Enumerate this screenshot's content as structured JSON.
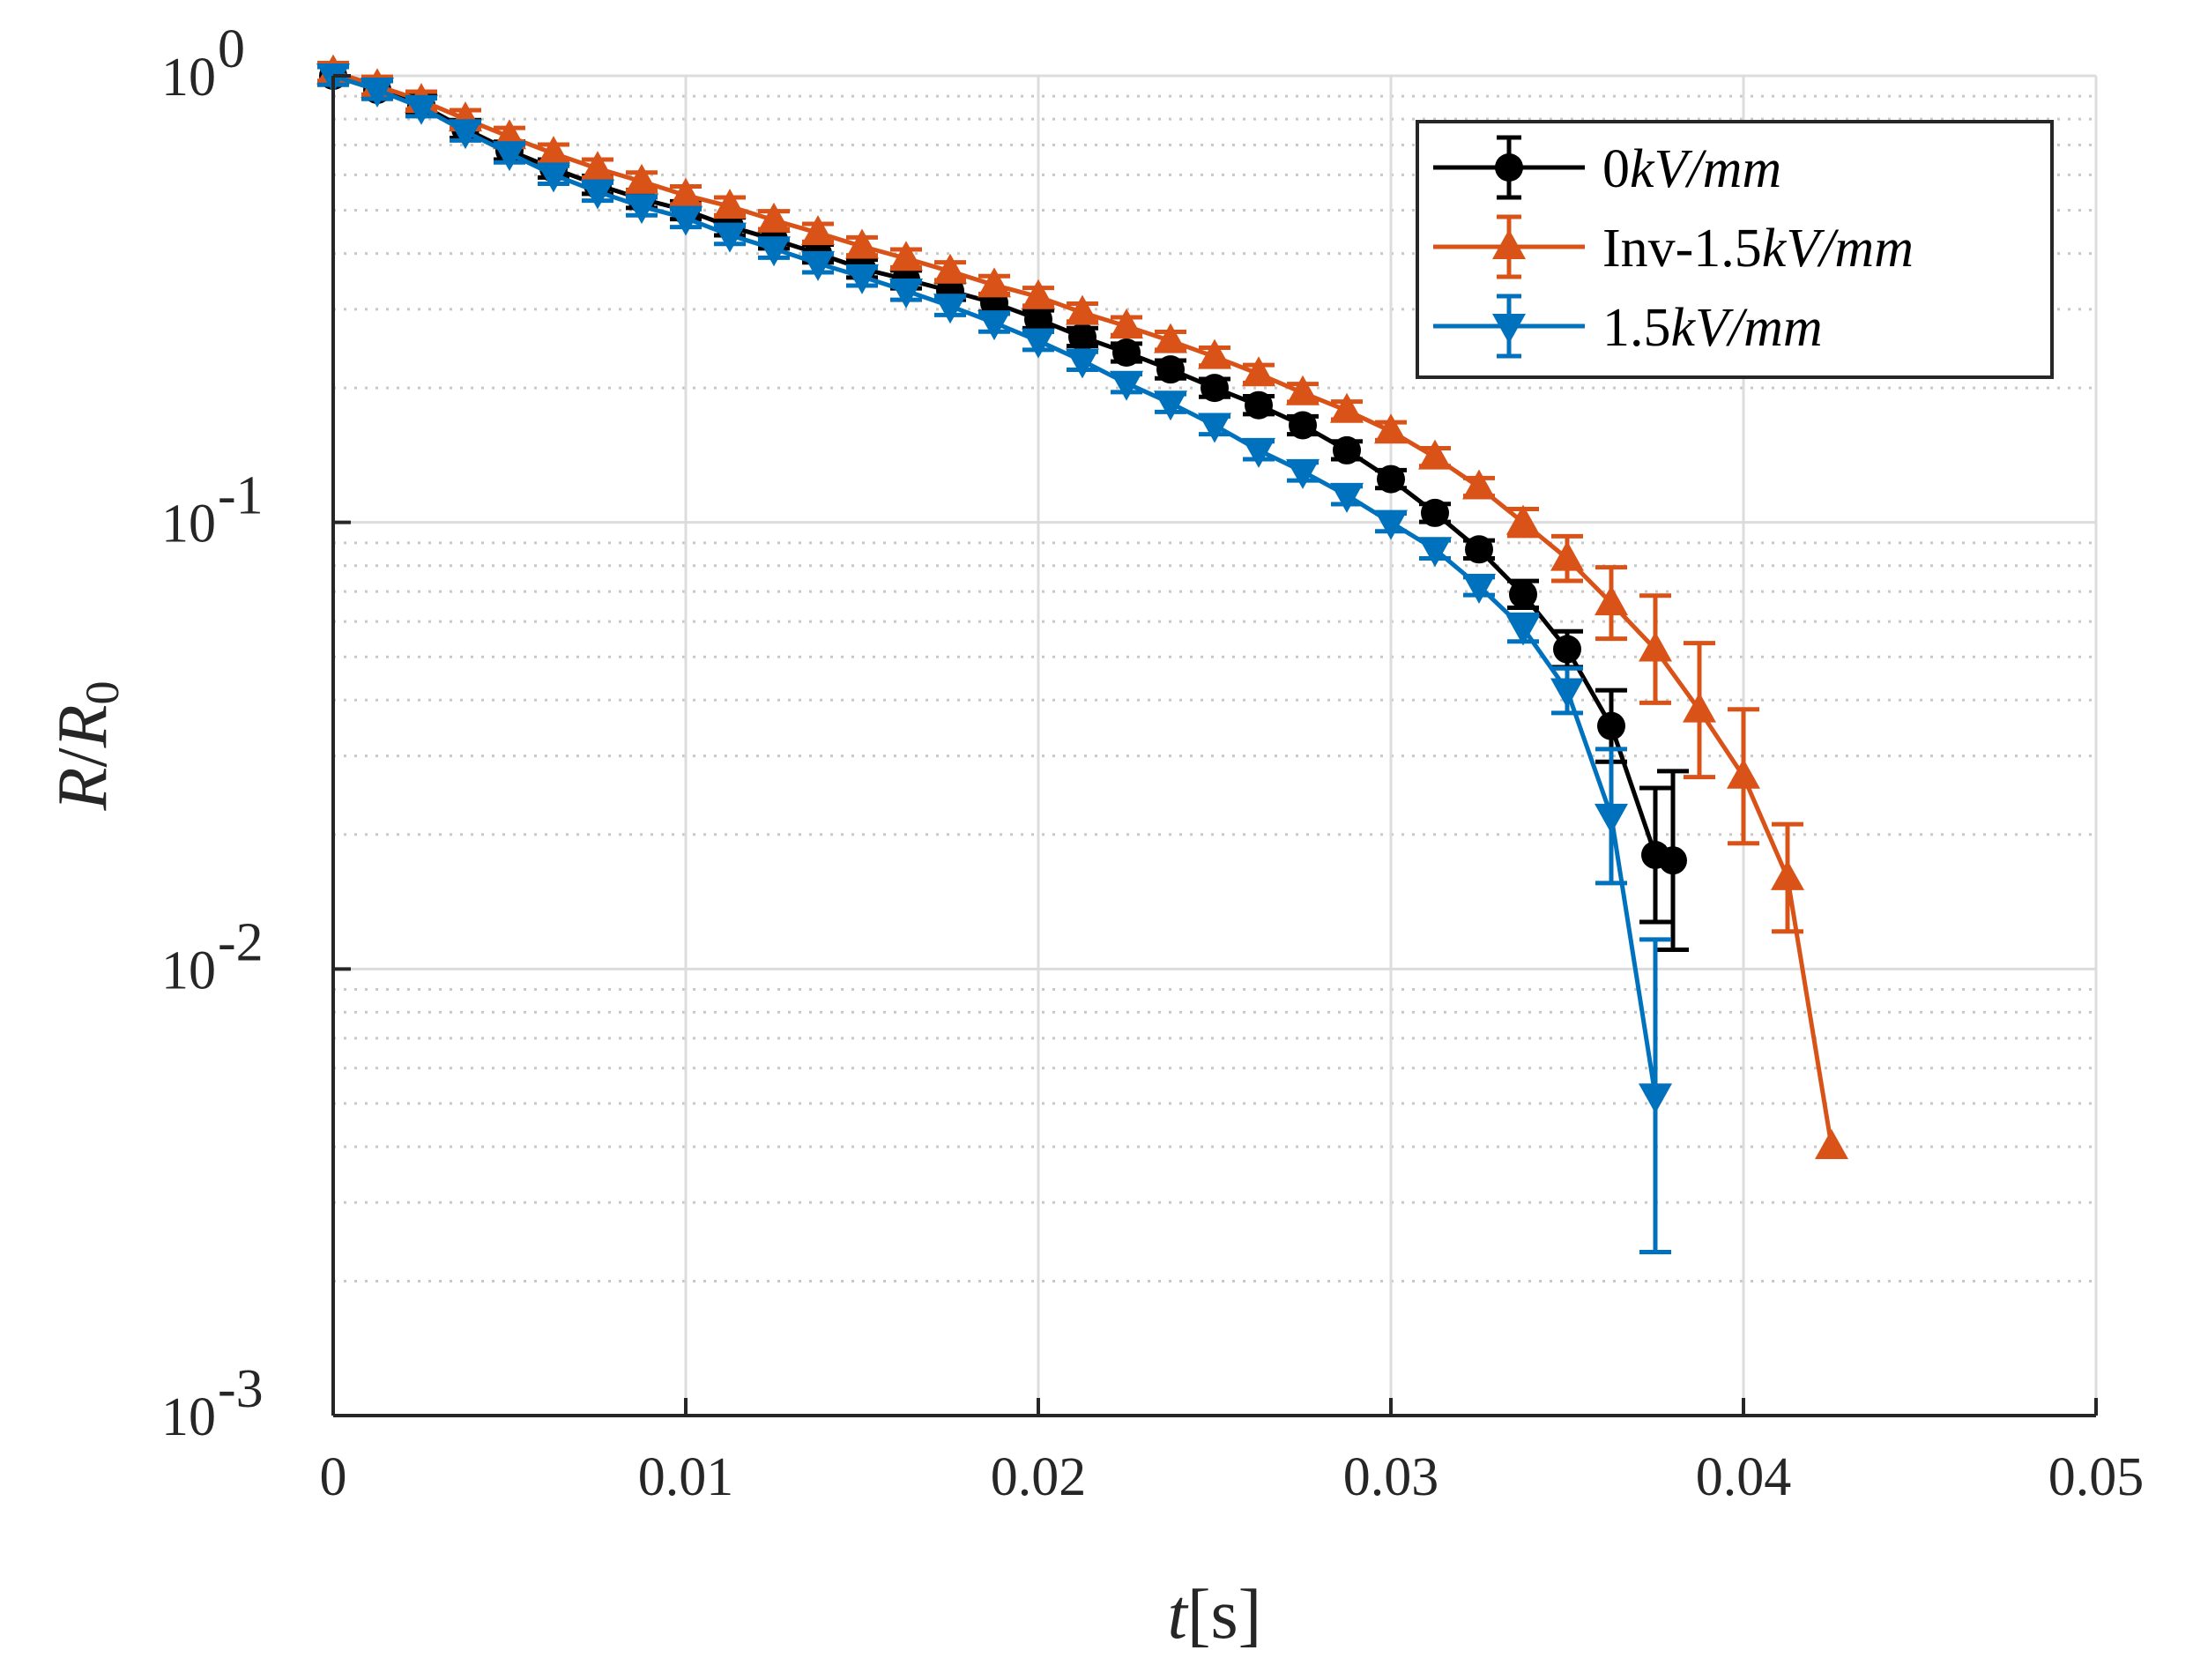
{
  "chart_data": {
    "type": "line",
    "yscale": "log",
    "xlabel_var": "t",
    "xlabel_unit": "[s]",
    "ylabel_R": "R",
    "ylabel_slash": "/",
    "ylabel_R0": "R",
    "ylabel_sub": "0",
    "xlim": [
      0,
      0.05
    ],
    "ylim": [
      0.001,
      1
    ],
    "xticks": [
      0,
      0.01,
      0.02,
      0.03,
      0.04,
      0.05
    ],
    "xtick_labels": [
      "0",
      "0.01",
      "0.02",
      "0.03",
      "0.04",
      "0.05"
    ],
    "yticks": [
      0.001,
      0.01,
      0.1,
      1
    ],
    "ytick_base": "10",
    "ytick_exponents": [
      "-3",
      "-2",
      "-1",
      "0"
    ],
    "grid": true,
    "legend_position": "top-right",
    "series": [
      {
        "name": "0kV/mm",
        "legend_prefix": "0",
        "legend_unit": "kV/mm",
        "color": "#000000",
        "marker": "circle",
        "x": [
          0,
          0.00125,
          0.0025,
          0.00375,
          0.005,
          0.00625,
          0.0075,
          0.00875,
          0.01,
          0.01125,
          0.0125,
          0.01375,
          0.015,
          0.01625,
          0.0175,
          0.01875,
          0.02,
          0.02125,
          0.0225,
          0.02375,
          0.025,
          0.02625,
          0.0275,
          0.02875,
          0.03,
          0.03125,
          0.0325,
          0.03375,
          0.035,
          0.03625,
          0.0375,
          0.038
        ],
        "y": [
          1.0,
          0.93,
          0.86,
          0.76,
          0.68,
          0.62,
          0.57,
          0.53,
          0.5,
          0.46,
          0.43,
          0.4,
          0.37,
          0.35,
          0.33,
          0.31,
          0.285,
          0.26,
          0.24,
          0.22,
          0.2,
          0.183,
          0.165,
          0.145,
          0.125,
          0.105,
          0.087,
          0.069,
          0.052,
          0.035,
          0.018,
          0.0175
        ],
        "err": [
          0.02,
          0.02,
          0.02,
          0.02,
          0.02,
          0.02,
          0.02,
          0.02,
          0.02,
          0.02,
          0.02,
          0.02,
          0.02,
          0.02,
          0.02,
          0.02,
          0.02,
          0.02,
          0.02,
          0.02,
          0.02,
          0.02,
          0.02,
          0.02,
          0.02,
          0.02,
          0.02,
          0.03,
          0.04,
          0.08,
          0.15,
          0.2
        ]
      },
      {
        "name": "Inv-1.5kV/mm",
        "legend_prefix": "Inv-1.5",
        "legend_unit": "kV/mm",
        "color": "#D95319",
        "marker": "triangle-up",
        "x": [
          0,
          0.00125,
          0.0025,
          0.00375,
          0.005,
          0.00625,
          0.0075,
          0.00875,
          0.01,
          0.01125,
          0.0125,
          0.01375,
          0.015,
          0.01625,
          0.0175,
          0.01875,
          0.02,
          0.02125,
          0.0225,
          0.02375,
          0.025,
          0.02625,
          0.0275,
          0.02875,
          0.03,
          0.03125,
          0.0325,
          0.03375,
          0.035,
          0.03625,
          0.0375,
          0.03875,
          0.04,
          0.04125,
          0.0425
        ],
        "y": [
          1.02,
          0.95,
          0.88,
          0.8,
          0.73,
          0.67,
          0.62,
          0.58,
          0.54,
          0.51,
          0.475,
          0.445,
          0.415,
          0.39,
          0.365,
          0.34,
          0.32,
          0.295,
          0.275,
          0.255,
          0.235,
          0.215,
          0.195,
          0.178,
          0.16,
          0.14,
          0.12,
          0.1,
          0.083,
          0.066,
          0.052,
          0.038,
          0.027,
          0.016,
          0.004
        ],
        "err": [
          0.02,
          0.02,
          0.02,
          0.02,
          0.02,
          0.02,
          0.02,
          0.02,
          0.02,
          0.02,
          0.02,
          0.02,
          0.02,
          0.02,
          0.02,
          0.02,
          0.02,
          0.02,
          0.02,
          0.02,
          0.02,
          0.02,
          0.02,
          0.02,
          0.02,
          0.02,
          0.02,
          0.03,
          0.05,
          0.08,
          0.12,
          0.15,
          0.15,
          0.12,
          0.0
        ]
      },
      {
        "name": "1.5kV/mm",
        "legend_prefix": "1.5",
        "legend_unit": "kV/mm",
        "color": "#0072BD",
        "marker": "triangle-down",
        "x": [
          0,
          0.00125,
          0.0025,
          0.00375,
          0.005,
          0.00625,
          0.0075,
          0.00875,
          0.01,
          0.01125,
          0.0125,
          0.01375,
          0.015,
          0.01625,
          0.0175,
          0.01875,
          0.02,
          0.02125,
          0.0225,
          0.02375,
          0.025,
          0.02625,
          0.0275,
          0.02875,
          0.03,
          0.03125,
          0.0325,
          0.03375,
          0.035,
          0.03625,
          0.0375
        ],
        "y": [
          1.0,
          0.93,
          0.85,
          0.75,
          0.67,
          0.6,
          0.55,
          0.51,
          0.48,
          0.44,
          0.41,
          0.38,
          0.355,
          0.33,
          0.305,
          0.28,
          0.255,
          0.23,
          0.205,
          0.185,
          0.165,
          0.145,
          0.13,
          0.115,
          0.1,
          0.087,
          0.072,
          0.058,
          0.042,
          0.022,
          0.0052
        ],
        "err": [
          0.02,
          0.02,
          0.02,
          0.02,
          0.02,
          0.02,
          0.02,
          0.02,
          0.02,
          0.02,
          0.02,
          0.02,
          0.02,
          0.02,
          0.02,
          0.02,
          0.02,
          0.02,
          0.02,
          0.02,
          0.02,
          0.02,
          0.02,
          0.02,
          0.02,
          0.02,
          0.02,
          0.03,
          0.05,
          0.15,
          0.35
        ]
      }
    ]
  }
}
